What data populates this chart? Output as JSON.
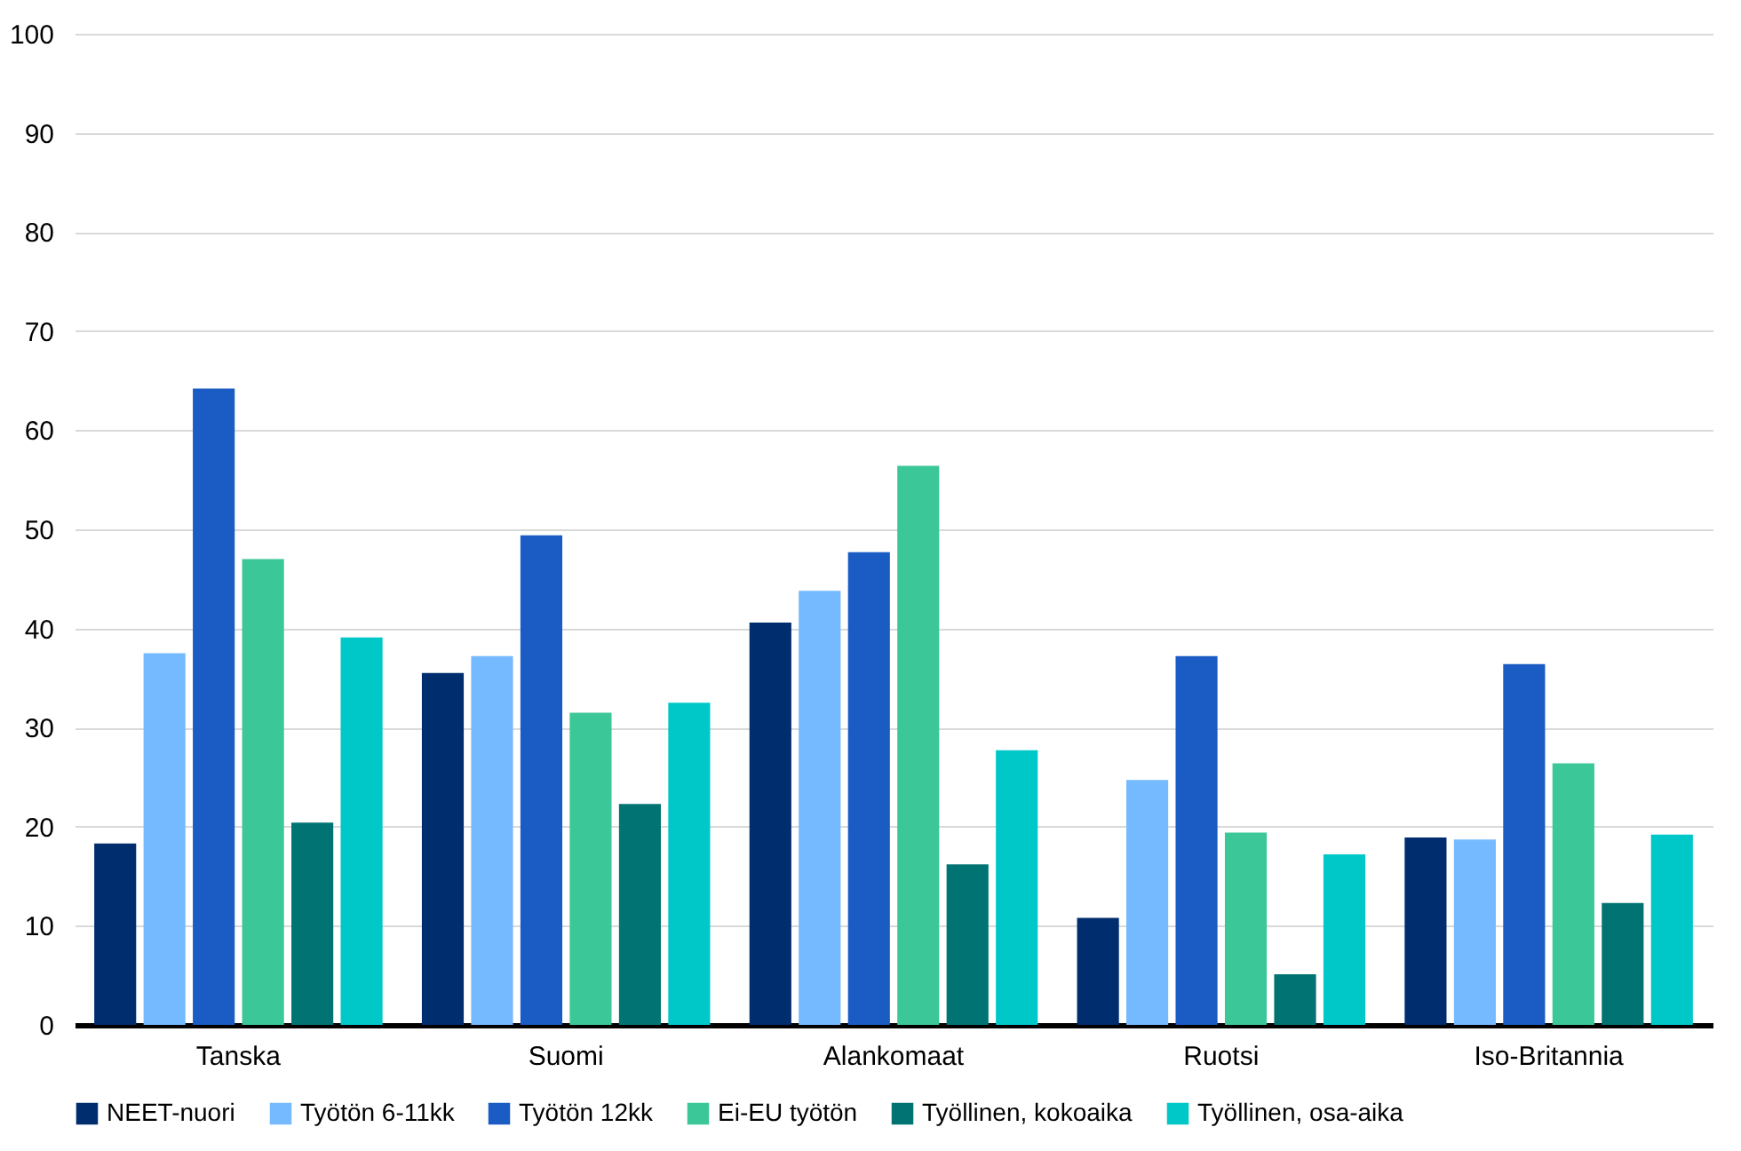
{
  "chart_data": {
    "type": "bar",
    "categories": [
      "Tanska",
      "Suomi",
      "Alankomaat",
      "Ruotsi",
      "Iso-Britannia"
    ],
    "series": [
      {
        "name": "NEET-nuori",
        "color": "#002d6e",
        "values": [
          18.3,
          35.5,
          40.6,
          10.8,
          18.9
        ]
      },
      {
        "name": "Työtön 6-11kk",
        "color": "#75baff",
        "values": [
          37.5,
          37.2,
          43.8,
          24.7,
          18.7
        ]
      },
      {
        "name": "Työtön 12kk",
        "color": "#1a5bc4",
        "values": [
          64.2,
          49.4,
          47.7,
          37.2,
          36.4
        ]
      },
      {
        "name": "Ei-EU työtön",
        "color": "#3cc798",
        "values": [
          47.0,
          31.5,
          56.4,
          19.4,
          26.4
        ]
      },
      {
        "name": "Työllinen, kokoaika",
        "color": "#007372",
        "values": [
          20.4,
          22.3,
          16.2,
          5.1,
          12.3
        ]
      },
      {
        "name": "Työllinen, osa-aika",
        "color": "#00c8c8",
        "values": [
          39.1,
          32.5,
          27.7,
          17.2,
          19.2
        ]
      }
    ],
    "ylim": [
      0,
      100
    ],
    "yticks": [
      0,
      10,
      20,
      30,
      40,
      50,
      60,
      70,
      80,
      90,
      100
    ],
    "grid": "y",
    "legend": "bottom"
  }
}
